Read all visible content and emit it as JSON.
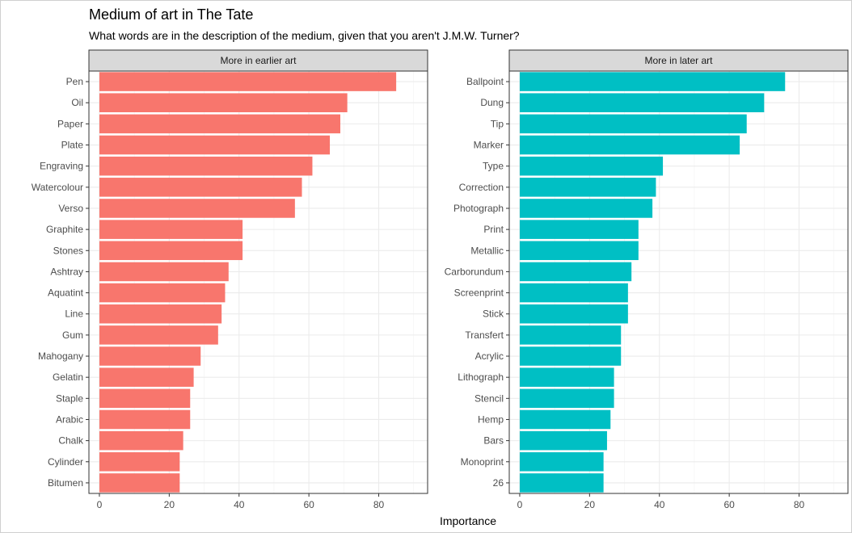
{
  "chart_data": {
    "type": "bar",
    "title": "Medium of art in The Tate",
    "subtitle": "What words are in the description of the medium, given that you aren't J.M.W. Turner?",
    "xlabel": "Importance",
    "ylabel": "",
    "xlim": [
      -3,
      94
    ],
    "x_ticks": [
      0,
      20,
      40,
      60,
      80
    ],
    "grid": true,
    "panels": [
      {
        "name": "More in earlier art",
        "color": "#F8766D",
        "categories": [
          "Pen",
          "Oil",
          "Paper",
          "Plate",
          "Engraving",
          "Watercolour",
          "Verso",
          "Graphite",
          "Stones",
          "Ashtray",
          "Aquatint",
          "Line",
          "Gum",
          "Mahogany",
          "Gelatin",
          "Staple",
          "Arabic",
          "Chalk",
          "Cylinder",
          "Bitumen"
        ],
        "values": [
          85,
          71,
          69,
          66,
          61,
          58,
          56,
          41,
          41,
          37,
          36,
          35,
          34,
          29,
          27,
          26,
          26,
          24,
          23,
          23
        ]
      },
      {
        "name": "More in later art",
        "color": "#00BFC4",
        "categories": [
          "Ballpoint",
          "Dung",
          "Tip",
          "Marker",
          "Type",
          "Correction",
          "Photograph",
          "Print",
          "Metallic",
          "Carborundum",
          "Screenprint",
          "Stick",
          "Transfert",
          "Acrylic",
          "Lithograph",
          "Stencil",
          "Hemp",
          "Bars",
          "Monoprint",
          "26"
        ],
        "values": [
          76,
          70,
          65,
          63,
          41,
          39,
          38,
          34,
          34,
          32,
          31,
          31,
          29,
          29,
          27,
          27,
          26,
          25,
          24,
          24
        ]
      }
    ]
  }
}
